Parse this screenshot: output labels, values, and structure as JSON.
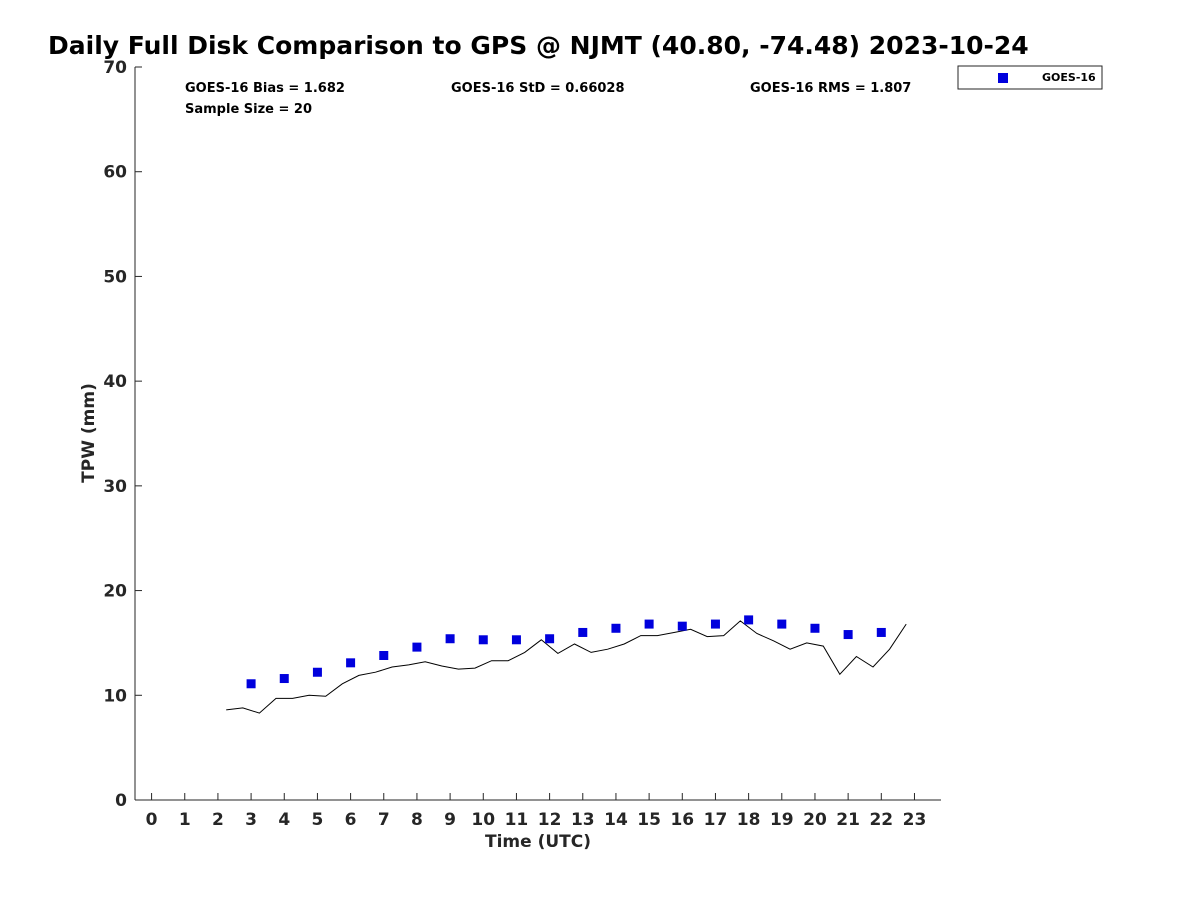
{
  "chart_data": {
    "type": "scatter",
    "title": "Daily Full Disk Comparison to GPS @ NJMT (40.80, -74.48) 2023-10-24",
    "xlabel": "Time (UTC)",
    "ylabel": "TPW (mm)",
    "xlim": [
      -0.5,
      23.8
    ],
    "ylim": [
      0,
      70
    ],
    "xticks": [
      0,
      1,
      2,
      3,
      4,
      5,
      6,
      7,
      8,
      9,
      10,
      11,
      12,
      13,
      14,
      15,
      16,
      17,
      18,
      19,
      20,
      21,
      22,
      23
    ],
    "yticks": [
      0,
      10,
      20,
      30,
      40,
      50,
      60,
      70
    ],
    "grid": false,
    "legend_position": "top-right (outside plot)",
    "stats": {
      "bias": "GOES-16 Bias = 1.682",
      "std": "GOES-16 StD = 0.66028",
      "rms": "GOES-16 RMS = 1.807",
      "sample": "Sample Size = 20"
    },
    "series": [
      {
        "name": "GOES-16",
        "kind": "marker",
        "color": "#0000dd",
        "x": [
          3,
          4,
          5,
          6,
          7,
          8,
          9,
          10,
          11,
          12,
          13,
          14,
          15,
          16,
          17,
          18,
          19,
          20,
          21,
          22
        ],
        "y": [
          11.1,
          11.6,
          12.2,
          13.1,
          13.8,
          14.6,
          15.4,
          15.3,
          15.3,
          15.4,
          16.0,
          16.4,
          16.8,
          16.6,
          16.8,
          17.2,
          16.8,
          16.4,
          15.8,
          16.0
        ]
      },
      {
        "kind": "line",
        "color": "#000000",
        "x": [
          2.25,
          2.75,
          3.25,
          3.75,
          4.25,
          4.75,
          5.25,
          5.75,
          6.25,
          6.75,
          7.25,
          7.75,
          8.25,
          8.75,
          9.25,
          9.75,
          10.25,
          10.75,
          11.25,
          11.75,
          12.25,
          12.75,
          13.25,
          13.75,
          14.25,
          14.75,
          15.25,
          15.75,
          16.25,
          16.75,
          17.25,
          17.75,
          18.25,
          18.75,
          19.25,
          19.75,
          20.25,
          20.75,
          21.25,
          21.75,
          22.25,
          22.75
        ],
        "y": [
          8.6,
          8.8,
          8.3,
          9.7,
          9.7,
          10.0,
          9.9,
          11.1,
          11.9,
          12.2,
          12.7,
          12.9,
          13.2,
          12.8,
          12.5,
          12.6,
          13.3,
          13.3,
          14.1,
          15.3,
          14.0,
          14.9,
          14.1,
          14.4,
          14.9,
          15.7,
          15.7,
          16.0,
          16.3,
          15.6,
          15.7,
          17.1,
          15.9,
          15.2,
          14.4,
          15.0,
          14.7,
          12.0,
          13.7,
          12.7,
          14.4,
          16.8
        ]
      }
    ]
  }
}
